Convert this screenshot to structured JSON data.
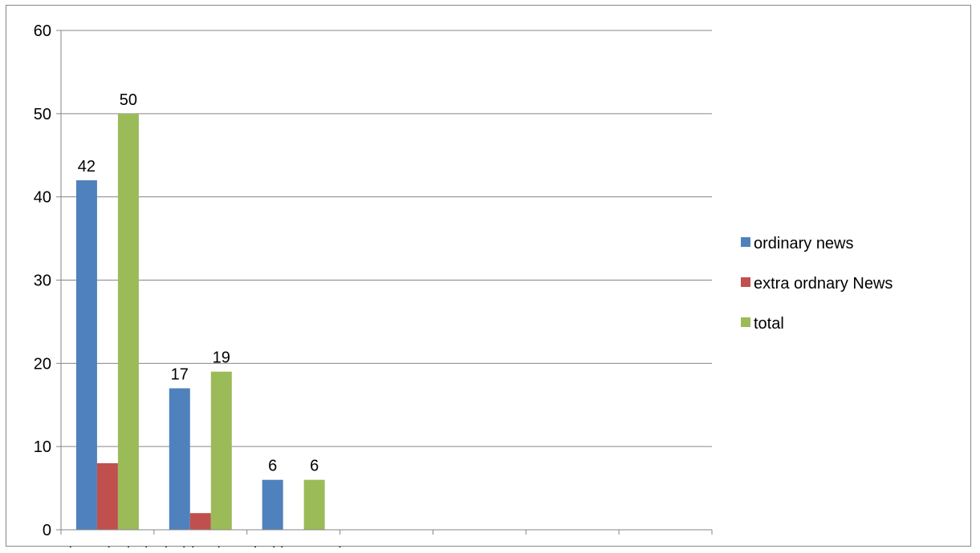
{
  "chart_data": {
    "type": "bar",
    "title": "",
    "xlabel": "",
    "ylabel": "",
    "categories": [
      "AdanechAbebe",
      "Debebiy Ahmed",
      "opposition  parties",
      "",
      "",
      "",
      ""
    ],
    "series": [
      {
        "name": "ordinary news",
        "color": "#4F81BD",
        "values": [
          42,
          17,
          6,
          null,
          null,
          null,
          null
        ],
        "labels": [
          "42",
          "17",
          "6",
          "",
          "",
          "",
          ""
        ]
      },
      {
        "name": "extra ordnary News",
        "color": "#C0504D",
        "values": [
          8,
          2,
          null,
          null,
          null,
          null,
          null
        ],
        "labels": [
          "",
          "",
          "",
          "",
          "",
          "",
          ""
        ]
      },
      {
        "name": "total",
        "color": "#9BBB59",
        "values": [
          50,
          19,
          6,
          null,
          null,
          null,
          null
        ],
        "labels": [
          "50",
          "19",
          "6",
          "",
          "",
          "",
          ""
        ]
      }
    ],
    "ylim": [
      0,
      60
    ],
    "yticks": [
      "0",
      "10",
      "20",
      "30",
      "40",
      "50",
      "60"
    ],
    "grid": true,
    "legend_position": "right"
  }
}
